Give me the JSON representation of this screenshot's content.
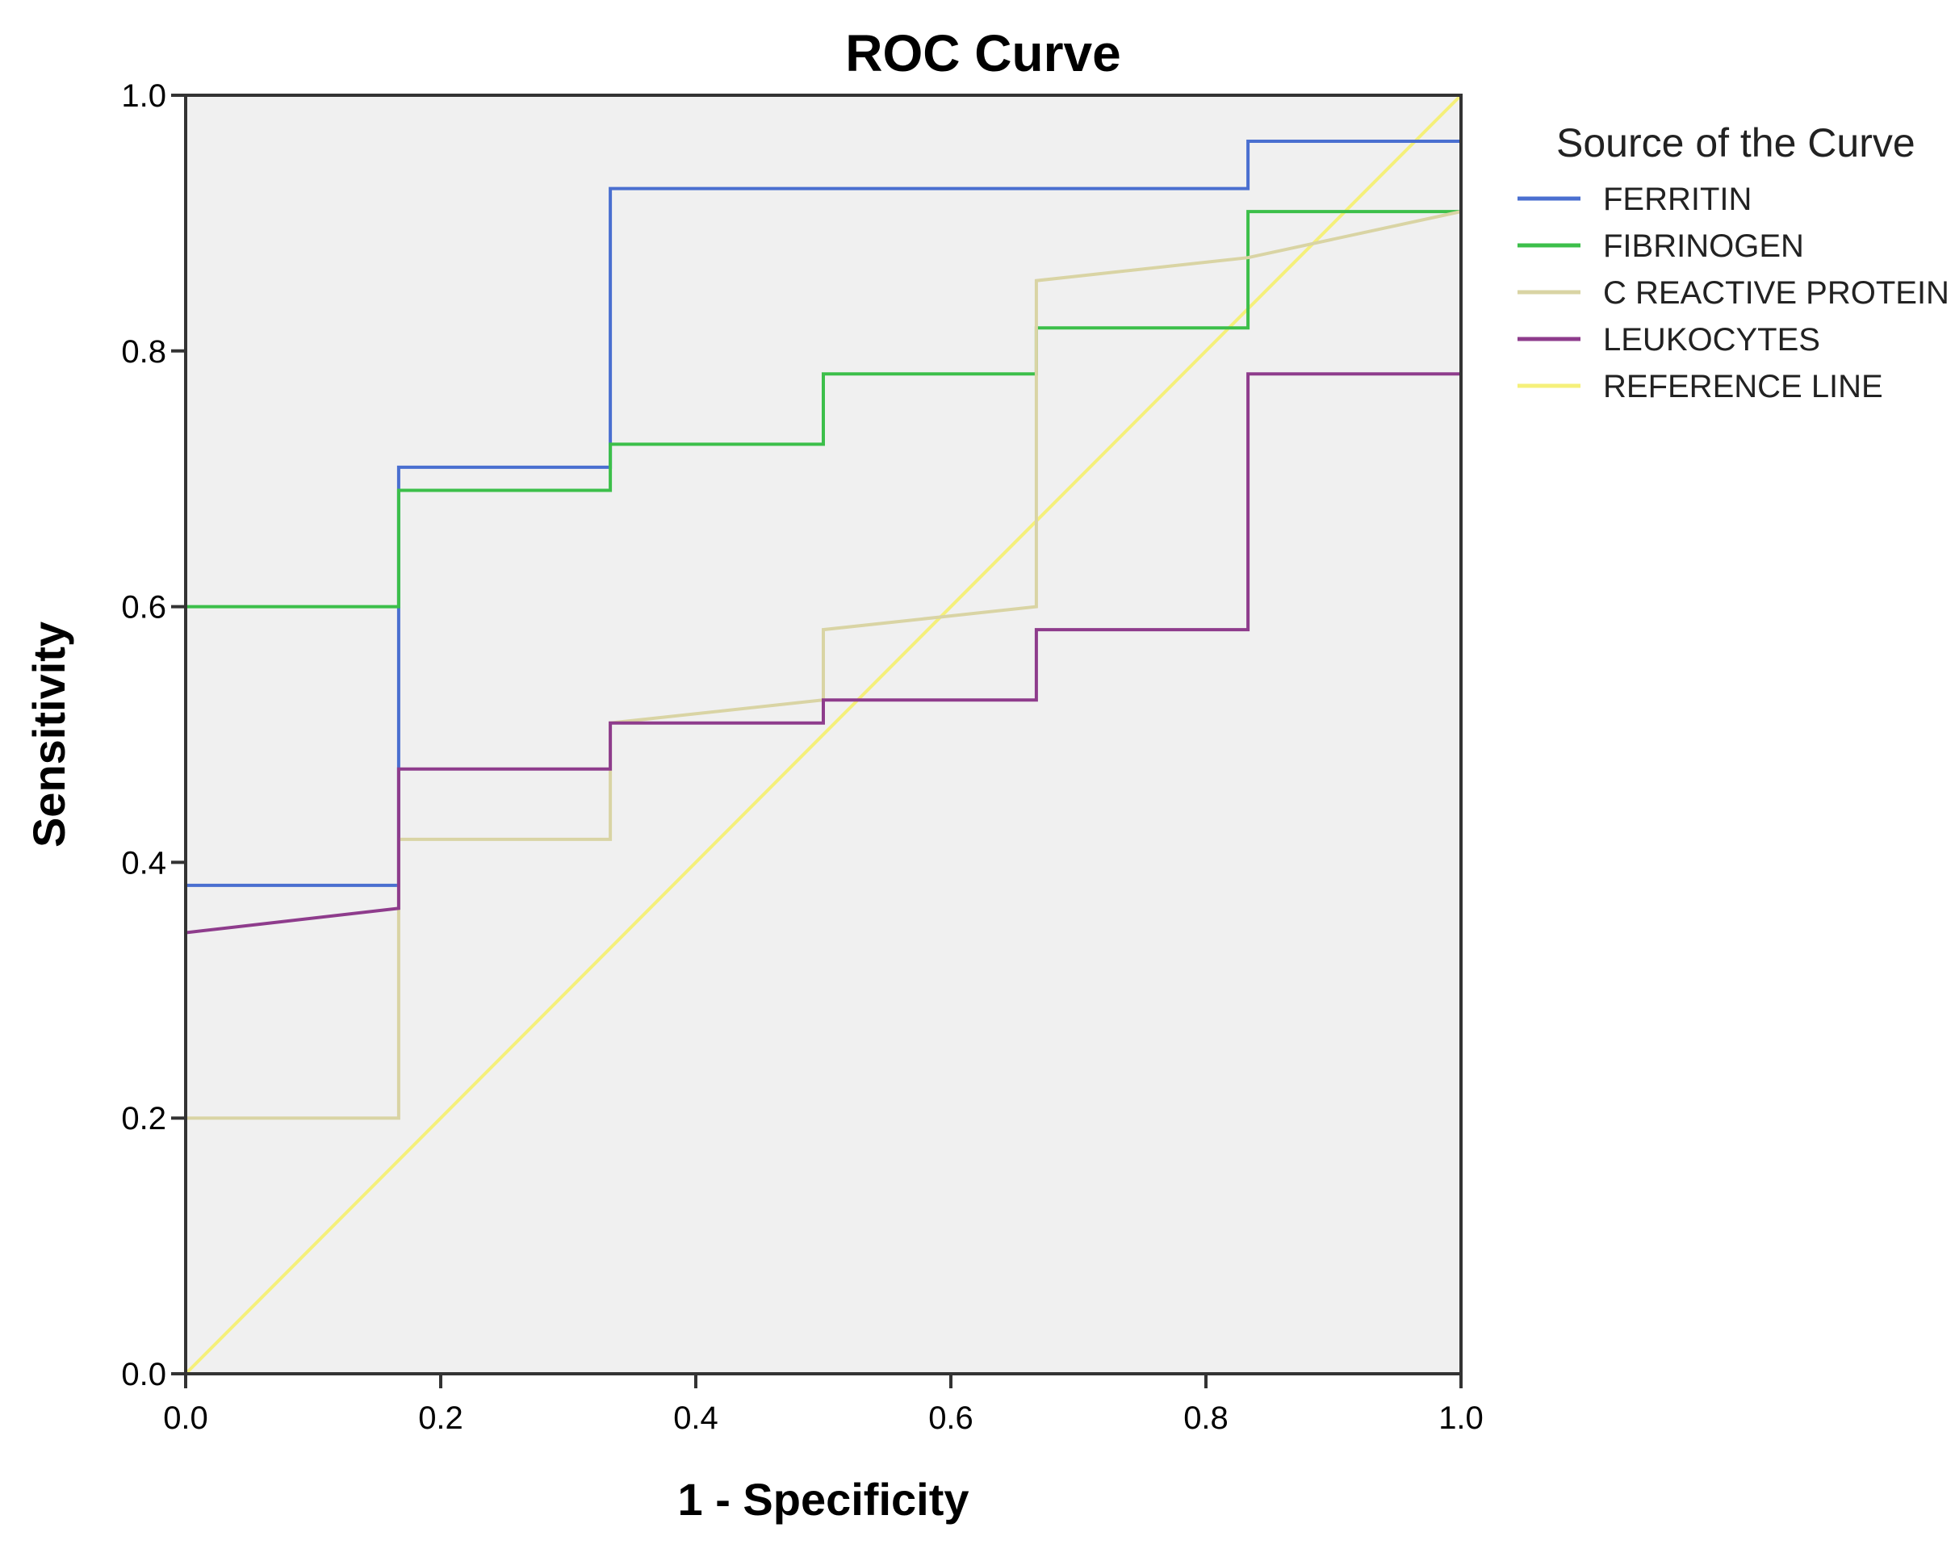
{
  "chart_data": {
    "type": "line",
    "title": "ROC Curve",
    "xlabel": "1 - Specificity",
    "ylabel": "Sensitivity",
    "xlim": [
      0.0,
      1.0
    ],
    "ylim": [
      0.0,
      1.0
    ],
    "x_ticks": [
      "0.0",
      "0.2",
      "0.4",
      "0.6",
      "0.8",
      "1.0"
    ],
    "y_ticks": [
      "0.0",
      "0.2",
      "0.4",
      "0.6",
      "0.8",
      "1.0"
    ],
    "grid": false,
    "plot_background": "#f0f0f0",
    "legend": {
      "title": "Source of the Curve",
      "position": "right"
    },
    "series": [
      {
        "name": "FERRITIN",
        "color": "#4a6fd0",
        "x": [
          0,
          0,
          0.167,
          0.167,
          0.333,
          0.333,
          0.833,
          0.833,
          1,
          1
        ],
        "y": [
          0,
          0.382,
          0.382,
          0.709,
          0.709,
          0.927,
          0.927,
          0.964,
          0.964,
          1
        ]
      },
      {
        "name": "FIBRINOGEN",
        "color": "#3cbf4a",
        "x": [
          0,
          0,
          0.167,
          0.167,
          0.333,
          0.333,
          0.5,
          0.5,
          0.667,
          0.667,
          0.833,
          0.833,
          1,
          1
        ],
        "y": [
          0,
          0.6,
          0.6,
          0.691,
          0.691,
          0.727,
          0.727,
          0.782,
          0.782,
          0.818,
          0.818,
          0.909,
          0.909,
          1
        ]
      },
      {
        "name": "C REACTIVE PROTEIN",
        "color": "#d9d4a4",
        "x": [
          0,
          0,
          0.167,
          0.167,
          0.333,
          0.333,
          0.5,
          0.5,
          0.667,
          0.667,
          0.833,
          1,
          1
        ],
        "y": [
          0,
          0.2,
          0.2,
          0.418,
          0.418,
          0.509,
          0.527,
          0.582,
          0.6,
          0.855,
          0.873,
          0.909,
          1
        ]
      },
      {
        "name": "LEUKOCYTES",
        "color": "#8e3c8c",
        "x": [
          0,
          0,
          0.167,
          0.167,
          0.333,
          0.333,
          0.5,
          0.5,
          0.667,
          0.667,
          0.833,
          0.833,
          1,
          1
        ],
        "y": [
          0,
          0.345,
          0.364,
          0.473,
          0.473,
          0.509,
          0.509,
          0.527,
          0.527,
          0.582,
          0.582,
          0.782,
          0.782,
          1
        ]
      },
      {
        "name": "REFERENCE LINE",
        "color": "#f5f07a",
        "x": [
          0,
          1
        ],
        "y": [
          0,
          1
        ]
      }
    ]
  }
}
